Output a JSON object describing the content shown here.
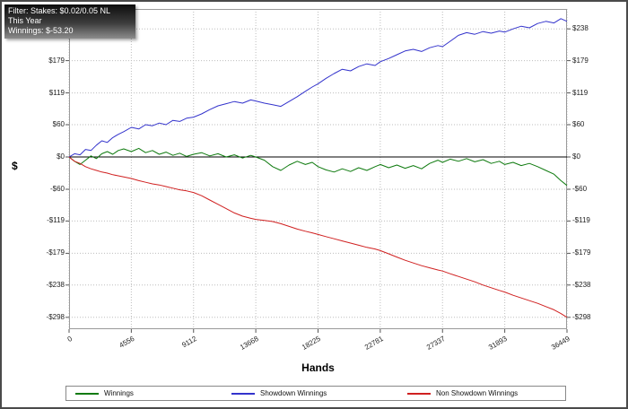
{
  "info_box": {
    "lines": [
      "Filter: Stakes: $0.02/0.05 NL",
      "This Year",
      "Winnings: $-53.20"
    ]
  },
  "chart_data": {
    "type": "line",
    "title": "",
    "xlabel": "Hands",
    "ylabel": "$",
    "grid": true,
    "legend_position": "bottom",
    "xlim": [
      0,
      36449
    ],
    "ylim": [
      -320,
      275
    ],
    "x_tick_values": [
      0,
      4556,
      9112,
      13668,
      18225,
      22781,
      27337,
      31893,
      36449
    ],
    "x_tick_labels": [
      "0",
      "4556",
      "9112",
      "13668",
      "18225",
      "22781",
      "27337",
      "31893",
      "36449"
    ],
    "y_tick_values": [
      238,
      179,
      119,
      60,
      0,
      -60,
      -119,
      -179,
      -238,
      -298
    ],
    "y_tick_labels": [
      "$238",
      "$179",
      "$119",
      "$60",
      "$0",
      "-$60",
      "-$119",
      "-$179",
      "-$238",
      "-$298"
    ],
    "colors": {
      "grid": "#bdbdbd",
      "axis_border": "#9a9a9a",
      "zero_line": "#000000",
      "tick_mark": "#555555"
    },
    "series": [
      {
        "name": "Winnings",
        "color": "#0e7a0e",
        "points": [
          [
            0,
            0
          ],
          [
            400,
            -8
          ],
          [
            800,
            -14
          ],
          [
            1200,
            -6
          ],
          [
            1600,
            2
          ],
          [
            2000,
            -3
          ],
          [
            2400,
            6
          ],
          [
            2800,
            10
          ],
          [
            3200,
            5
          ],
          [
            3600,
            12
          ],
          [
            4000,
            15
          ],
          [
            4556,
            10
          ],
          [
            5100,
            16
          ],
          [
            5600,
            8
          ],
          [
            6100,
            12
          ],
          [
            6600,
            5
          ],
          [
            7100,
            9
          ],
          [
            7600,
            3
          ],
          [
            8100,
            7
          ],
          [
            8600,
            1
          ],
          [
            9112,
            5
          ],
          [
            9700,
            8
          ],
          [
            10300,
            2
          ],
          [
            10900,
            6
          ],
          [
            11500,
            0
          ],
          [
            12100,
            4
          ],
          [
            12700,
            -2
          ],
          [
            13300,
            3
          ],
          [
            13668,
            0
          ],
          [
            14300,
            -6
          ],
          [
            14900,
            -18
          ],
          [
            15500,
            -25
          ],
          [
            16100,
            -15
          ],
          [
            16700,
            -8
          ],
          [
            17300,
            -14
          ],
          [
            17800,
            -10
          ],
          [
            18225,
            -18
          ],
          [
            18800,
            -24
          ],
          [
            19400,
            -28
          ],
          [
            20000,
            -22
          ],
          [
            20600,
            -27
          ],
          [
            21200,
            -20
          ],
          [
            21800,
            -25
          ],
          [
            22400,
            -18
          ],
          [
            22781,
            -14
          ],
          [
            23400,
            -20
          ],
          [
            24000,
            -15
          ],
          [
            24600,
            -21
          ],
          [
            25200,
            -16
          ],
          [
            25800,
            -22
          ],
          [
            26400,
            -12
          ],
          [
            27000,
            -6
          ],
          [
            27337,
            -10
          ],
          [
            27900,
            -4
          ],
          [
            28500,
            -8
          ],
          [
            29100,
            -3
          ],
          [
            29700,
            -9
          ],
          [
            30300,
            -5
          ],
          [
            30900,
            -12
          ],
          [
            31500,
            -8
          ],
          [
            31893,
            -14
          ],
          [
            32500,
            -10
          ],
          [
            33100,
            -16
          ],
          [
            33700,
            -12
          ],
          [
            34300,
            -18
          ],
          [
            34900,
            -25
          ],
          [
            35500,
            -32
          ],
          [
            36000,
            -44
          ],
          [
            36449,
            -53
          ]
        ]
      },
      {
        "name": "Showdown Winnings",
        "color": "#3333cc",
        "points": [
          [
            0,
            0
          ],
          [
            400,
            6
          ],
          [
            800,
            4
          ],
          [
            1200,
            14
          ],
          [
            1600,
            12
          ],
          [
            2000,
            22
          ],
          [
            2400,
            30
          ],
          [
            2800,
            27
          ],
          [
            3200,
            36
          ],
          [
            3600,
            42
          ],
          [
            4000,
            47
          ],
          [
            4556,
            55
          ],
          [
            5100,
            52
          ],
          [
            5600,
            60
          ],
          [
            6100,
            58
          ],
          [
            6600,
            63
          ],
          [
            7100,
            60
          ],
          [
            7600,
            68
          ],
          [
            8100,
            66
          ],
          [
            8600,
            72
          ],
          [
            9112,
            74
          ],
          [
            9700,
            80
          ],
          [
            10300,
            88
          ],
          [
            10900,
            95
          ],
          [
            11500,
            99
          ],
          [
            12100,
            103
          ],
          [
            12700,
            100
          ],
          [
            13300,
            106
          ],
          [
            13668,
            104
          ],
          [
            14300,
            100
          ],
          [
            14900,
            97
          ],
          [
            15500,
            94
          ],
          [
            16100,
            103
          ],
          [
            16700,
            112
          ],
          [
            17300,
            122
          ],
          [
            17800,
            130
          ],
          [
            18225,
            136
          ],
          [
            18800,
            146
          ],
          [
            19400,
            155
          ],
          [
            20000,
            163
          ],
          [
            20600,
            160
          ],
          [
            21200,
            168
          ],
          [
            21800,
            173
          ],
          [
            22400,
            170
          ],
          [
            22781,
            177
          ],
          [
            23400,
            183
          ],
          [
            24000,
            190
          ],
          [
            24600,
            197
          ],
          [
            25200,
            200
          ],
          [
            25800,
            196
          ],
          [
            26400,
            203
          ],
          [
            27000,
            207
          ],
          [
            27337,
            205
          ],
          [
            27900,
            215
          ],
          [
            28500,
            226
          ],
          [
            29100,
            231
          ],
          [
            29700,
            228
          ],
          [
            30300,
            233
          ],
          [
            30900,
            230
          ],
          [
            31500,
            234
          ],
          [
            31893,
            232
          ],
          [
            32500,
            238
          ],
          [
            33100,
            243
          ],
          [
            33700,
            240
          ],
          [
            34300,
            248
          ],
          [
            34900,
            252
          ],
          [
            35500,
            249
          ],
          [
            36000,
            257
          ],
          [
            36449,
            252
          ]
        ]
      },
      {
        "name": "Non Showdown Winnings",
        "color": "#d02020",
        "points": [
          [
            0,
            0
          ],
          [
            400,
            -8
          ],
          [
            800,
            -12
          ],
          [
            1200,
            -18
          ],
          [
            1600,
            -22
          ],
          [
            2000,
            -25
          ],
          [
            2400,
            -28
          ],
          [
            2800,
            -30
          ],
          [
            3200,
            -33
          ],
          [
            3600,
            -35
          ],
          [
            4000,
            -37
          ],
          [
            4556,
            -40
          ],
          [
            5100,
            -44
          ],
          [
            5600,
            -47
          ],
          [
            6100,
            -50
          ],
          [
            6600,
            -52
          ],
          [
            7100,
            -55
          ],
          [
            7600,
            -58
          ],
          [
            8100,
            -61
          ],
          [
            8600,
            -63
          ],
          [
            9112,
            -66
          ],
          [
            9700,
            -72
          ],
          [
            10300,
            -80
          ],
          [
            10900,
            -88
          ],
          [
            11500,
            -96
          ],
          [
            12100,
            -104
          ],
          [
            12700,
            -110
          ],
          [
            13300,
            -114
          ],
          [
            13668,
            -116
          ],
          [
            14300,
            -118
          ],
          [
            14900,
            -120
          ],
          [
            15500,
            -124
          ],
          [
            16100,
            -129
          ],
          [
            16700,
            -134
          ],
          [
            17300,
            -138
          ],
          [
            17800,
            -141
          ],
          [
            18225,
            -144
          ],
          [
            18800,
            -148
          ],
          [
            19400,
            -152
          ],
          [
            20000,
            -156
          ],
          [
            20600,
            -160
          ],
          [
            21200,
            -164
          ],
          [
            21800,
            -168
          ],
          [
            22400,
            -171
          ],
          [
            22781,
            -174
          ],
          [
            23400,
            -180
          ],
          [
            24000,
            -186
          ],
          [
            24600,
            -192
          ],
          [
            25200,
            -197
          ],
          [
            25800,
            -202
          ],
          [
            26400,
            -206
          ],
          [
            27000,
            -210
          ],
          [
            27337,
            -212
          ],
          [
            27900,
            -217
          ],
          [
            28500,
            -222
          ],
          [
            29100,
            -227
          ],
          [
            29700,
            -232
          ],
          [
            30300,
            -238
          ],
          [
            30900,
            -243
          ],
          [
            31500,
            -248
          ],
          [
            31893,
            -251
          ],
          [
            32500,
            -257
          ],
          [
            33100,
            -262
          ],
          [
            33700,
            -267
          ],
          [
            34300,
            -272
          ],
          [
            34900,
            -278
          ],
          [
            35500,
            -284
          ],
          [
            36000,
            -291
          ],
          [
            36449,
            -298
          ]
        ]
      }
    ]
  }
}
